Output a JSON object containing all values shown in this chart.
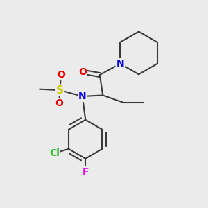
{
  "background_color": "#ebebeb",
  "bond_color": "#3a3a3a",
  "atom_colors": {
    "N": "#0000ee",
    "O": "#ee0000",
    "S": "#cccc00",
    "Cl": "#22bb22",
    "F": "#ee00ee",
    "C": "#3a3a3a"
  },
  "figsize": [
    3.0,
    3.0
  ],
  "dpi": 100
}
